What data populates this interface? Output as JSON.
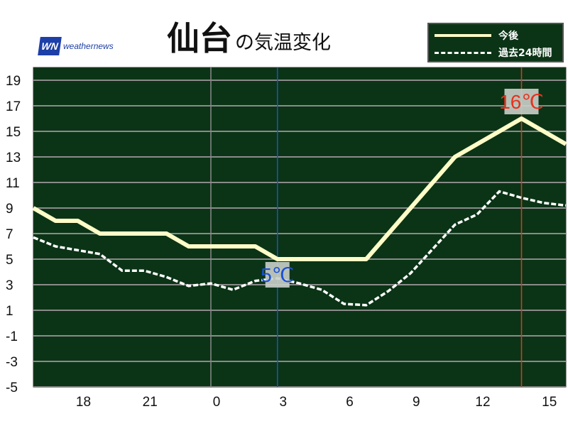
{
  "logo": {
    "mark": "WN",
    "text": "weathernews"
  },
  "title": {
    "city": "仙台",
    "suffix": "の気温変化"
  },
  "legend": {
    "future": "今後",
    "past": "過去24時間"
  },
  "colors": {
    "plot_bg": "#0b3416",
    "future": "#fffcc8",
    "past": "#ffffff",
    "min_marker": "#1b4fd6",
    "max_marker": "#e8321e",
    "grid": "#8a8a8a"
  },
  "chart_data": {
    "type": "line",
    "x_unit": "hour",
    "xlim": [
      16,
      40
    ],
    "ylim": [
      -5,
      20
    ],
    "y_ticks": [
      19,
      17,
      15,
      13,
      11,
      9,
      7,
      5,
      3,
      1,
      -1,
      -3,
      -5
    ],
    "x_ticks": [
      {
        "x": 18,
        "label": "18"
      },
      {
        "x": 21,
        "label": "21"
      },
      {
        "x": 24,
        "label": "0"
      },
      {
        "x": 27,
        "label": "3"
      },
      {
        "x": 30,
        "label": "6"
      },
      {
        "x": 33,
        "label": "9"
      },
      {
        "x": 36,
        "label": "12"
      },
      {
        "x": 39,
        "label": "15"
      }
    ],
    "grid": true,
    "series": [
      {
        "name": "今後",
        "style": "solid",
        "x": [
          16,
          17,
          18,
          19,
          20,
          21,
          22,
          23,
          24,
          25,
          26,
          27,
          28,
          29,
          30,
          31,
          32,
          33,
          34,
          35,
          36,
          37,
          38,
          39,
          40
        ],
        "values": [
          9,
          8,
          8,
          7,
          7,
          7,
          7,
          6,
          6,
          6,
          6,
          5,
          5,
          5,
          5,
          5,
          7,
          9,
          11,
          13,
          14,
          15,
          16,
          15,
          14
        ]
      },
      {
        "name": "過去24時間",
        "style": "dashed",
        "x": [
          16,
          17,
          18,
          19,
          20,
          21,
          22,
          23,
          24,
          25,
          26,
          27,
          28,
          29,
          30,
          31,
          32,
          33,
          34,
          35,
          36,
          37,
          38,
          39,
          40
        ],
        "values": [
          6.7,
          6.0,
          5.7,
          5.4,
          4.1,
          4.1,
          3.6,
          2.9,
          3.1,
          2.6,
          3.3,
          3.5,
          3.1,
          2.6,
          1.5,
          1.4,
          2.5,
          3.9,
          5.8,
          7.7,
          8.5,
          10.3,
          9.8,
          9.4,
          9.2
        ]
      }
    ],
    "annotations": [
      {
        "type": "min",
        "x": 27,
        "value": 5,
        "label": "5℃"
      },
      {
        "type": "max",
        "x": 38,
        "value": 16,
        "label": "16℃"
      }
    ]
  }
}
